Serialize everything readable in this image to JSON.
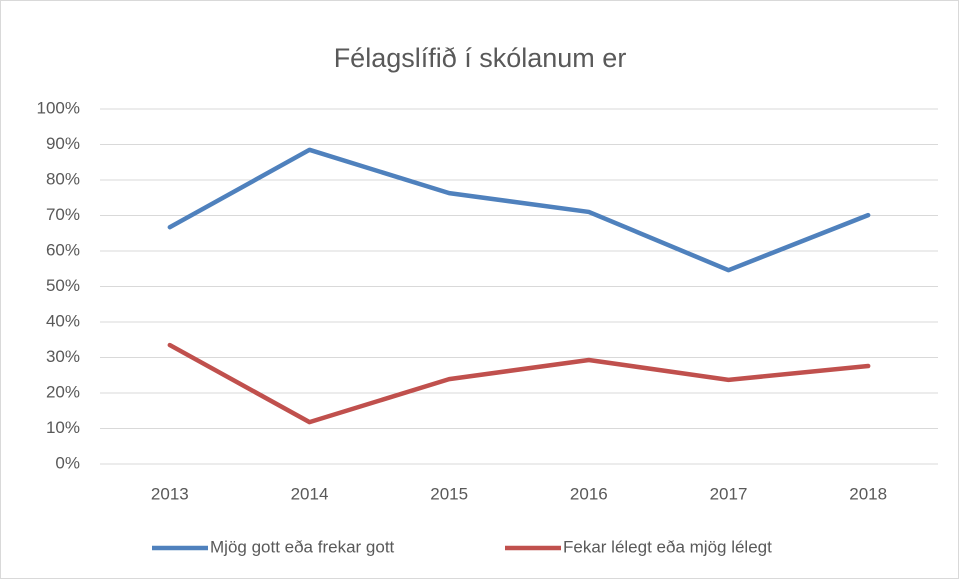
{
  "chart_data": {
    "type": "line",
    "title": "Félagslífið í skólanum er",
    "categories": [
      "2013",
      "2014",
      "2015",
      "2016",
      "2017",
      "2018"
    ],
    "series": [
      {
        "name": "Mjög gott eða frekar gott",
        "color": "#4f81bd",
        "values": [
          66.7,
          88.5,
          76.3,
          71,
          54.6,
          70.1
        ]
      },
      {
        "name": "Fekar lélegt eða mjög lélegt",
        "color": "#c0504d",
        "values": [
          33.5,
          11.8,
          23.9,
          29.3,
          23.7,
          27.6
        ]
      }
    ],
    "ylim": [
      0,
      100
    ],
    "yticks": [
      {
        "value": 0,
        "label": "0%"
      },
      {
        "value": 10,
        "label": "10%"
      },
      {
        "value": 20,
        "label": "20%"
      },
      {
        "value": 30,
        "label": "30%"
      },
      {
        "value": 40,
        "label": "40%"
      },
      {
        "value": 50,
        "label": "50%"
      },
      {
        "value": 60,
        "label": "60%"
      },
      {
        "value": 70,
        "label": "70%"
      },
      {
        "value": 80,
        "label": "80%"
      },
      {
        "value": 90,
        "label": "90%"
      },
      {
        "value": 100,
        "label": "100%"
      }
    ],
    "grid": true,
    "legend": "bottom"
  }
}
